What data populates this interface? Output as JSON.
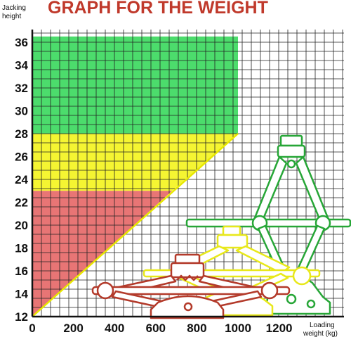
{
  "chart_data": {
    "type": "area",
    "title": "GRAPH FOR THE WEIGHT",
    "ylabel": [
      "Jacking",
      "height"
    ],
    "xlabel": [
      "Loading",
      "weight (kg)"
    ],
    "xlim": [
      0,
      1500
    ],
    "ylim": [
      12,
      37
    ],
    "xticks": [
      0,
      200,
      400,
      600,
      800,
      1000,
      1200
    ],
    "yticks": [
      12,
      14,
      16,
      18,
      20,
      22,
      24,
      26,
      28,
      30,
      32,
      34,
      36
    ],
    "grid": true,
    "zones": [
      {
        "name": "",
        "color": "#4cdc6c",
        "ybase": 28,
        "points": [
          [
            0,
            36.5
          ],
          [
            1000,
            36.5
          ],
          [
            1000,
            28
          ],
          [
            0,
            28
          ]
        ]
      },
      {
        "name": "",
        "color": "#f5f532",
        "ybase": 23,
        "points": [
          [
            0,
            28
          ],
          [
            1000,
            28
          ],
          [
            680,
            23
          ],
          [
            0,
            23
          ]
        ]
      },
      {
        "name": "",
        "color": "#e87575",
        "ybase": 12,
        "points": [
          [
            0,
            23
          ],
          [
            680,
            23
          ],
          [
            0,
            12
          ]
        ]
      }
    ],
    "boundary_line": {
      "color": "#e8e800",
      "points": [
        [
          0,
          12
        ],
        [
          1000,
          28
        ]
      ]
    }
  },
  "illustrations": [
    {
      "name": "green-scissor-jack",
      "color": "#27a637"
    },
    {
      "name": "yellow-scissor-jack",
      "color": "#e8e81a"
    },
    {
      "name": "red-scissor-jack",
      "color": "#b33a2a"
    }
  ]
}
